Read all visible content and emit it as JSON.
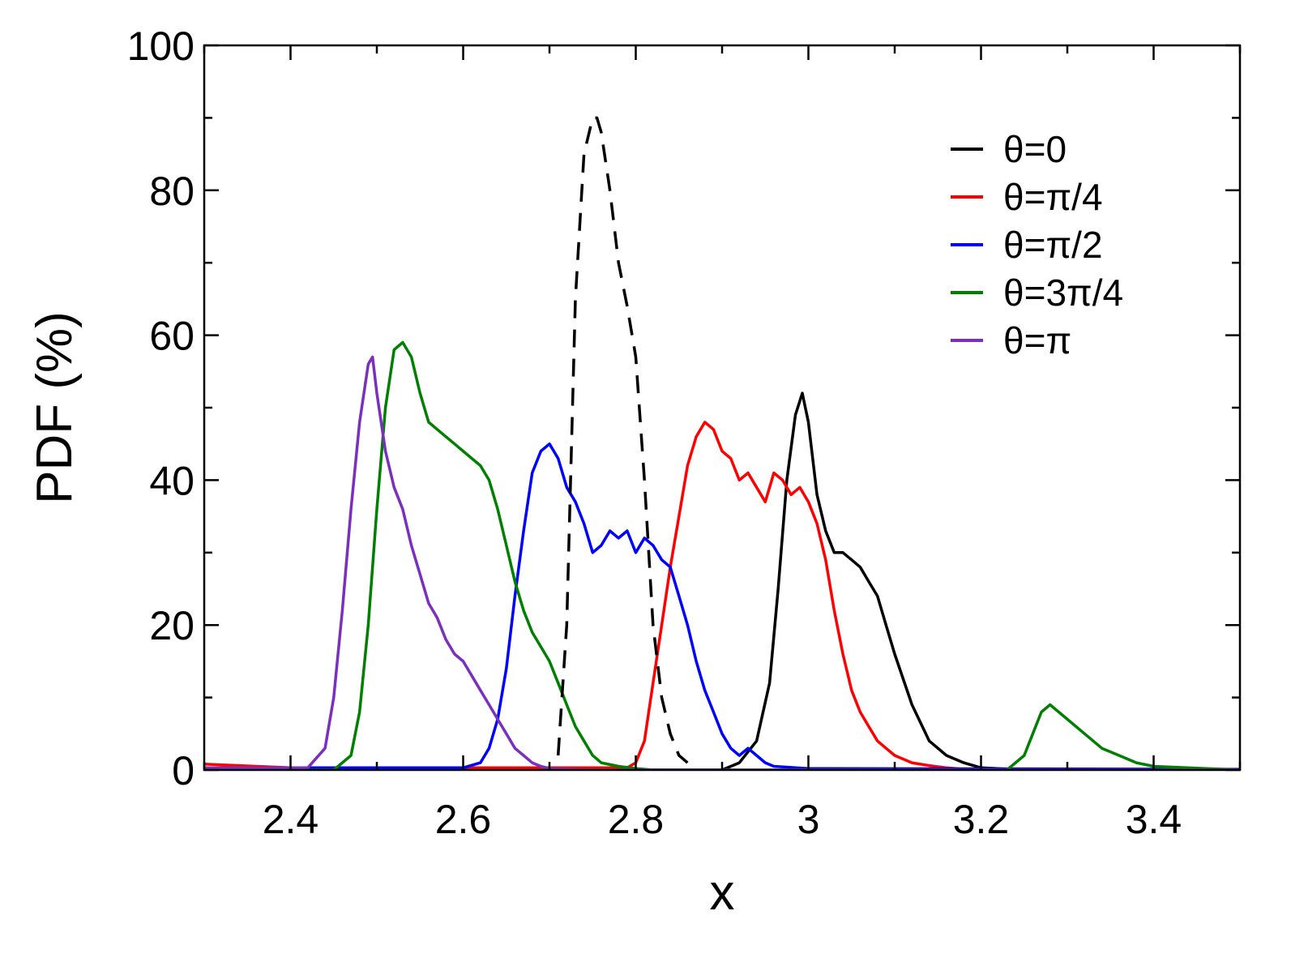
{
  "chart_data": {
    "type": "line",
    "title": "",
    "xlabel": "x",
    "ylabel": "PDF (%)",
    "xlim": [
      2.3,
      3.5
    ],
    "ylim": [
      0,
      100
    ],
    "xticks": [
      2.4,
      2.6,
      2.8,
      3.0,
      3.2,
      3.4
    ],
    "xtick_labels": [
      "2.4",
      "2.6",
      "2.8",
      "3",
      "3.2",
      "3.4"
    ],
    "yticks": [
      0,
      20,
      40,
      60,
      80,
      100
    ],
    "ytick_labels": [
      "0",
      "20",
      "40",
      "60",
      "80",
      "100"
    ],
    "legend_position": "top-right",
    "grid": false,
    "series": [
      {
        "name": "θ=0",
        "color": "#000000",
        "dash": false,
        "x": [
          2.3,
          2.85,
          2.9,
          2.92,
          2.94,
          2.955,
          2.965,
          2.975,
          2.985,
          2.993,
          3.0,
          3.01,
          3.02,
          3.03,
          3.04,
          3.05,
          3.06,
          3.07,
          3.08,
          3.09,
          3.1,
          3.12,
          3.14,
          3.16,
          3.18,
          3.2,
          3.25,
          3.5
        ],
        "y": [
          0,
          0,
          0,
          1,
          4,
          12,
          25,
          40,
          49,
          52,
          48,
          38,
          33,
          30,
          30,
          29,
          28,
          26,
          24,
          20,
          16,
          9,
          4,
          2,
          1,
          0.3,
          0,
          0
        ]
      },
      {
        "name": "θ=π/4",
        "color": "#ff0000",
        "dash": false,
        "x": [
          2.3,
          2.4,
          2.79,
          2.8,
          2.81,
          2.82,
          2.83,
          2.84,
          2.85,
          2.86,
          2.87,
          2.88,
          2.89,
          2.9,
          2.91,
          2.92,
          2.93,
          2.94,
          2.95,
          2.96,
          2.97,
          2.98,
          2.99,
          3.0,
          3.01,
          3.02,
          3.03,
          3.04,
          3.05,
          3.06,
          3.07,
          3.08,
          3.09,
          3.1,
          3.12,
          3.14,
          3.16,
          3.18,
          3.2,
          3.5
        ],
        "y": [
          0.8,
          0.3,
          0.3,
          1,
          4,
          12,
          20,
          28,
          35,
          42,
          46,
          48,
          47,
          44,
          43,
          40,
          41,
          39,
          37,
          41,
          40,
          38,
          39,
          37,
          34,
          29,
          22,
          16,
          11,
          8,
          6,
          4,
          3,
          2,
          1,
          0.6,
          0.3,
          0.1,
          0,
          0
        ]
      },
      {
        "name": "θ=π/2",
        "color": "#0000ff",
        "dash": false,
        "x": [
          2.3,
          2.6,
          2.62,
          2.63,
          2.64,
          2.65,
          2.66,
          2.67,
          2.68,
          2.69,
          2.7,
          2.71,
          2.72,
          2.73,
          2.74,
          2.75,
          2.76,
          2.77,
          2.78,
          2.79,
          2.8,
          2.81,
          2.82,
          2.83,
          2.84,
          2.85,
          2.86,
          2.87,
          2.88,
          2.89,
          2.9,
          2.91,
          2.92,
          2.93,
          2.94,
          2.95,
          2.96,
          3.0,
          3.5
        ],
        "y": [
          0.3,
          0.3,
          1,
          3,
          7,
          14,
          24,
          33,
          41,
          44,
          45,
          43,
          39,
          37,
          34,
          30,
          31,
          33,
          32,
          33,
          30,
          32,
          31,
          29,
          28,
          24,
          20,
          15,
          11,
          8,
          5,
          3,
          2,
          3,
          2,
          1,
          0.5,
          0.2,
          0.1
        ]
      },
      {
        "name": "θ=3π/4",
        "color": "#008000",
        "dash": false,
        "x": [
          2.3,
          2.45,
          2.47,
          2.48,
          2.49,
          2.5,
          2.51,
          2.52,
          2.53,
          2.54,
          2.55,
          2.56,
          2.57,
          2.58,
          2.59,
          2.6,
          2.61,
          2.62,
          2.63,
          2.64,
          2.65,
          2.66,
          2.67,
          2.68,
          2.69,
          2.7,
          2.71,
          2.72,
          2.73,
          2.74,
          2.75,
          2.76,
          2.78,
          2.8,
          2.82,
          3.23,
          3.25,
          3.26,
          3.27,
          3.28,
          3.29,
          3.3,
          3.31,
          3.32,
          3.34,
          3.36,
          3.38,
          3.4,
          3.5
        ],
        "y": [
          0,
          0,
          2,
          8,
          20,
          36,
          50,
          58,
          59,
          57,
          52,
          48,
          47,
          46,
          45,
          44,
          43,
          42,
          40,
          36,
          31,
          26,
          22,
          19,
          17,
          15,
          12,
          9,
          6,
          4,
          2,
          1,
          0.5,
          0.2,
          0,
          0,
          2,
          5,
          8,
          9,
          8,
          7,
          6,
          5,
          3,
          2,
          1,
          0.5,
          0
        ]
      },
      {
        "name": "θ=π",
        "color": "#7b2fbe",
        "dash": false,
        "x": [
          2.3,
          2.42,
          2.44,
          2.45,
          2.46,
          2.47,
          2.48,
          2.49,
          2.495,
          2.5,
          2.51,
          2.52,
          2.53,
          2.54,
          2.55,
          2.56,
          2.57,
          2.58,
          2.59,
          2.6,
          2.61,
          2.62,
          2.63,
          2.64,
          2.65,
          2.66,
          2.67,
          2.68,
          2.69,
          2.7,
          2.72,
          2.75,
          3.5
        ],
        "y": [
          0.3,
          0.3,
          3,
          10,
          22,
          36,
          48,
          56,
          57,
          52,
          44,
          39,
          36,
          31,
          27,
          23,
          21,
          18,
          16,
          15,
          13,
          11,
          9,
          7,
          5,
          3,
          2,
          1,
          0.5,
          0.2,
          0.1,
          0,
          0
        ]
      },
      {
        "name": "",
        "color": "#000000",
        "dash": true,
        "x": [
          2.71,
          2.72,
          2.73,
          2.74,
          2.75,
          2.755,
          2.76,
          2.77,
          2.78,
          2.79,
          2.8,
          2.81,
          2.82,
          2.83,
          2.84,
          2.85,
          2.86
        ],
        "y": [
          2,
          20,
          65,
          85,
          90,
          90,
          88,
          80,
          70,
          64,
          57,
          40,
          20,
          10,
          5,
          2,
          1
        ]
      }
    ]
  }
}
